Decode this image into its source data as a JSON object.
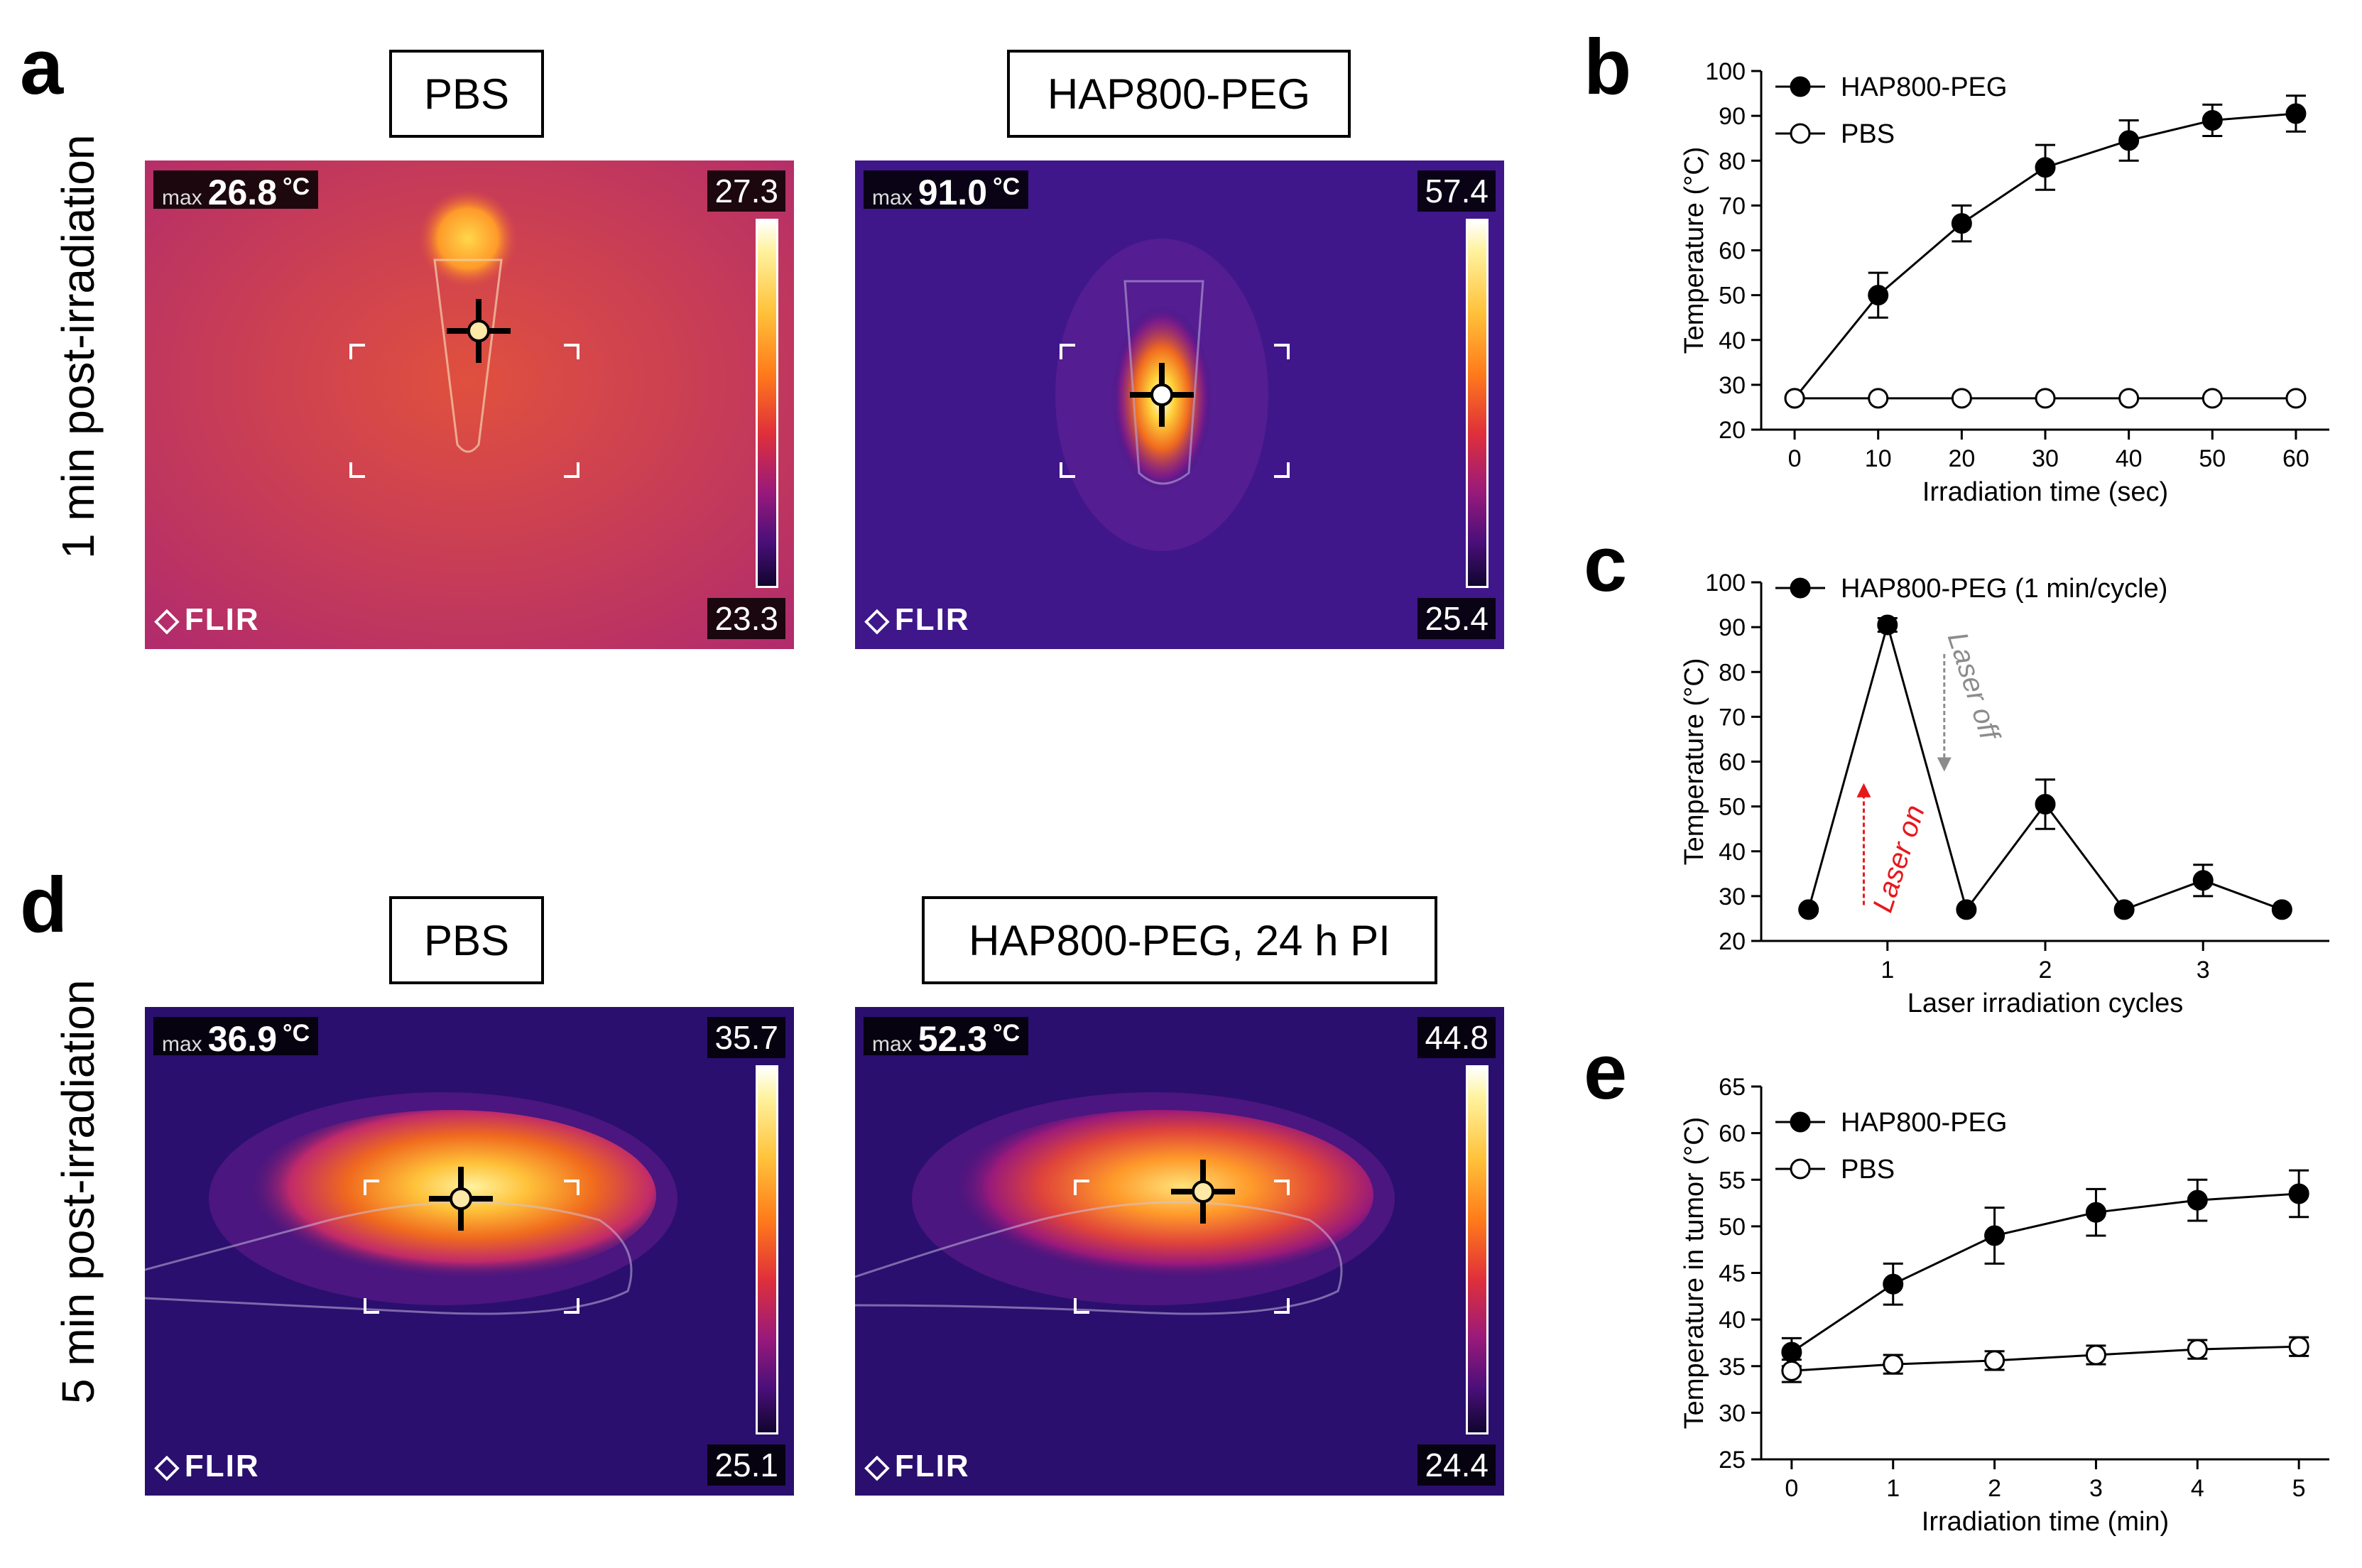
{
  "letters": {
    "a": "a",
    "b": "b",
    "c": "c",
    "d": "d",
    "e": "e"
  },
  "rows": {
    "top": "1 min post-irradiation",
    "bottom": "5 min post-irradiation"
  },
  "thermal": [
    {
      "title": "PBS",
      "max_label": "max",
      "max_value": "26.8",
      "unit": "°C",
      "scale_top": "27.3",
      "scale_bottom": "23.3",
      "brand": "FLIR"
    },
    {
      "title": "HAP800-PEG",
      "max_label": "max",
      "max_value": "91.0",
      "unit": "°C",
      "scale_top": "57.4",
      "scale_bottom": "25.4",
      "brand": "FLIR"
    },
    {
      "title": "PBS",
      "max_label": "max",
      "max_value": "36.9",
      "unit": "°C",
      "scale_top": "35.7",
      "scale_bottom": "25.1",
      "brand": "FLIR"
    },
    {
      "title": "HAP800-PEG, 24 h PI",
      "max_label": "max",
      "max_value": "52.3",
      "unit": "°C",
      "scale_top": "44.8",
      "scale_bottom": "24.4",
      "brand": "FLIR"
    }
  ],
  "colors": {
    "line": "#000000",
    "laser_on": "#e8171b",
    "laser_off": "#8c8c8c"
  },
  "chart_data": [
    {
      "panel": "b",
      "type": "line",
      "xlabel": "Irradiation time (sec)",
      "ylabel": "Temperature (°C)",
      "x": [
        0,
        10,
        20,
        30,
        40,
        50,
        60
      ],
      "xlim": [
        -4,
        64
      ],
      "ylim": [
        20,
        100
      ],
      "xticks": [
        0,
        10,
        20,
        30,
        40,
        50,
        60
      ],
      "yticks": [
        20,
        30,
        40,
        50,
        60,
        70,
        80,
        90,
        100
      ],
      "series": [
        {
          "name": "HAP800-PEG",
          "filled": true,
          "values": [
            27,
            50,
            66,
            78.5,
            84.5,
            89,
            90.5
          ],
          "errors": [
            0,
            5,
            4,
            5,
            4.5,
            3.5,
            4
          ]
        },
        {
          "name": "PBS",
          "filled": false,
          "values": [
            27,
            27,
            27,
            27,
            27,
            27,
            27
          ],
          "errors": [
            0,
            0,
            0,
            0,
            0,
            0,
            0
          ]
        }
      ],
      "legend": "top-left"
    },
    {
      "panel": "c",
      "type": "line",
      "xlabel": "Laser irradiation cycles",
      "ylabel": "Temperature (°C)",
      "x": [
        0.5,
        1,
        1.5,
        2,
        2.5,
        3,
        3.5
      ],
      "xlim": [
        0.2,
        3.8
      ],
      "ylim": [
        20,
        100
      ],
      "xticks": [
        1,
        2,
        3
      ],
      "yticks": [
        20,
        30,
        40,
        50,
        60,
        70,
        80,
        90,
        100
      ],
      "series": [
        {
          "name": "HAP800-PEG (1 min/cycle)",
          "filled": true,
          "values": [
            27,
            90.5,
            27,
            50.5,
            27,
            33.5,
            27
          ],
          "errors": [
            0,
            1.5,
            0,
            5.5,
            0,
            3.5,
            0
          ]
        }
      ],
      "annotations": [
        {
          "text": "Laser on",
          "color": "laser_on"
        },
        {
          "text": "Laser off",
          "color": "laser_off"
        }
      ],
      "legend": "top-left"
    },
    {
      "panel": "e",
      "type": "line",
      "xlabel": "Irradiation time (min)",
      "ylabel": "Temperature in tumor (°C)",
      "x": [
        0,
        1,
        2,
        3,
        4,
        5
      ],
      "xlim": [
        -0.3,
        5.3
      ],
      "ylim": [
        25,
        65
      ],
      "xticks": [
        0,
        1,
        2,
        3,
        4,
        5
      ],
      "yticks": [
        25,
        30,
        35,
        40,
        45,
        50,
        55,
        60,
        65
      ],
      "series": [
        {
          "name": "HAP800-PEG",
          "filled": true,
          "values": [
            36.5,
            43.8,
            49,
            51.5,
            52.8,
            53.5
          ],
          "errors": [
            1.5,
            2.2,
            3,
            2.5,
            2.2,
            2.5
          ]
        },
        {
          "name": "PBS",
          "filled": false,
          "values": [
            34.5,
            35.2,
            35.6,
            36.2,
            36.8,
            37.1
          ],
          "errors": [
            1.2,
            1,
            1,
            1,
            1,
            1
          ]
        }
      ],
      "legend": "top-left"
    }
  ]
}
